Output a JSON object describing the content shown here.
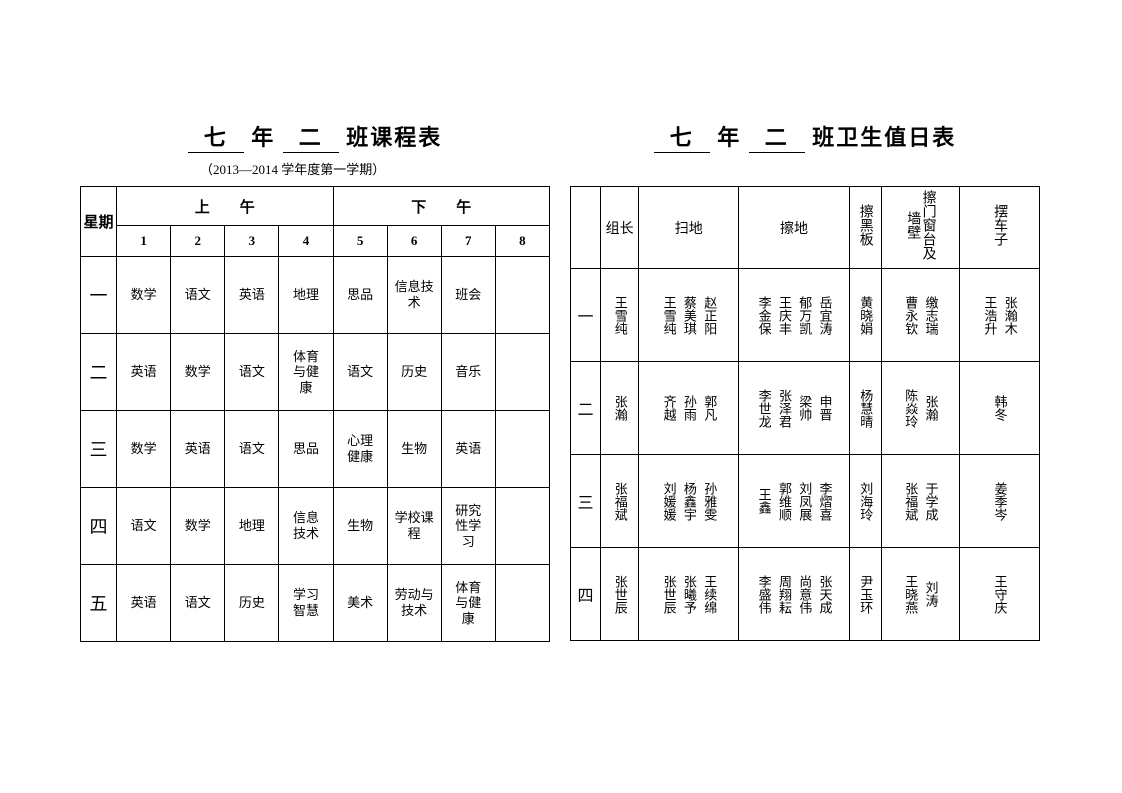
{
  "schedule": {
    "title_grade": "七",
    "title_year": "年",
    "title_class": "二",
    "title_suffix": "班课程表",
    "subtitle": "（2013—2014 学年度第一学期）",
    "week_label": "星期",
    "am_label": "上　　午",
    "pm_label": "下　　午",
    "periods": [
      "1",
      "2",
      "3",
      "4",
      "5",
      "6",
      "7",
      "8"
    ],
    "days": [
      "一",
      "二",
      "三",
      "四",
      "五"
    ],
    "rows": [
      [
        "数学",
        "语文",
        "英语",
        "地理",
        "思品",
        "信息技\n术",
        "班会",
        ""
      ],
      [
        "英语",
        "数学",
        "语文",
        "体育\n与健\n康",
        "语文",
        "历史",
        "音乐",
        ""
      ],
      [
        "数学",
        "英语",
        "语文",
        "思品",
        "心理\n健康",
        "生物",
        "英语",
        ""
      ],
      [
        "语文",
        "数学",
        "地理",
        "信息\n技术",
        "生物",
        "学校课\n程",
        "研究\n性学\n习",
        ""
      ],
      [
        "英语",
        "语文",
        "历史",
        "学习\n智慧",
        "美术",
        "劳动与\n技术",
        "体育\n与健\n康",
        ""
      ]
    ]
  },
  "duty": {
    "title_grade": "七",
    "title_year": "年",
    "title_class": "二",
    "title_suffix": "班卫生值日表",
    "headers": [
      "组长",
      "扫地",
      "擦地",
      "擦黑板",
      "擦门窗台及墙壁",
      "摆车子"
    ],
    "days": [
      "一",
      "二",
      "三",
      "四"
    ],
    "rows": [
      {
        "leader": [
          "王雪纯"
        ],
        "sweep": [
          "王雪纯",
          "蔡美琪",
          "赵正阳"
        ],
        "mop": [
          "李金保",
          "王庆丰",
          "郁万凯",
          "岳宜涛"
        ],
        "board": [
          "黄晓娟"
        ],
        "window": [
          "曹永钦",
          "缴志瑞"
        ],
        "vehicle": [
          "王浩升",
          "张瀚木"
        ]
      },
      {
        "leader": [
          "张瀚"
        ],
        "sweep": [
          "齐\n越",
          "孙\n雨",
          "郭\n凡"
        ],
        "mop": [
          "李世龙",
          "张泽君",
          "梁\n帅",
          "申\n晋"
        ],
        "board": [
          "杨慧晴"
        ],
        "window": [
          "陈焱玲",
          "张\n瀚"
        ],
        "vehicle": [
          "韩\n冬"
        ]
      },
      {
        "leader": [
          "张福斌"
        ],
        "sweep": [
          "刘媛媛",
          "杨鑫宇",
          "孙雅雯"
        ],
        "mop": [
          "王\n鑫",
          "郭维顺",
          "刘凤展",
          "李熠喜"
        ],
        "board": [
          "刘海玲"
        ],
        "window": [
          "张福斌",
          "于学成"
        ],
        "vehicle": [
          "姜季岑"
        ]
      },
      {
        "leader": [
          "张世辰"
        ],
        "sweep": [
          "张世辰",
          "张曦予",
          "王续绵"
        ],
        "mop": [
          "李盛伟",
          "周翔耘",
          "尚意伟",
          "张天成"
        ],
        "board": [
          "尹玉环"
        ],
        "window": [
          "王晓燕",
          "刘\n涛"
        ],
        "vehicle": [
          "王守庆"
        ]
      }
    ]
  }
}
